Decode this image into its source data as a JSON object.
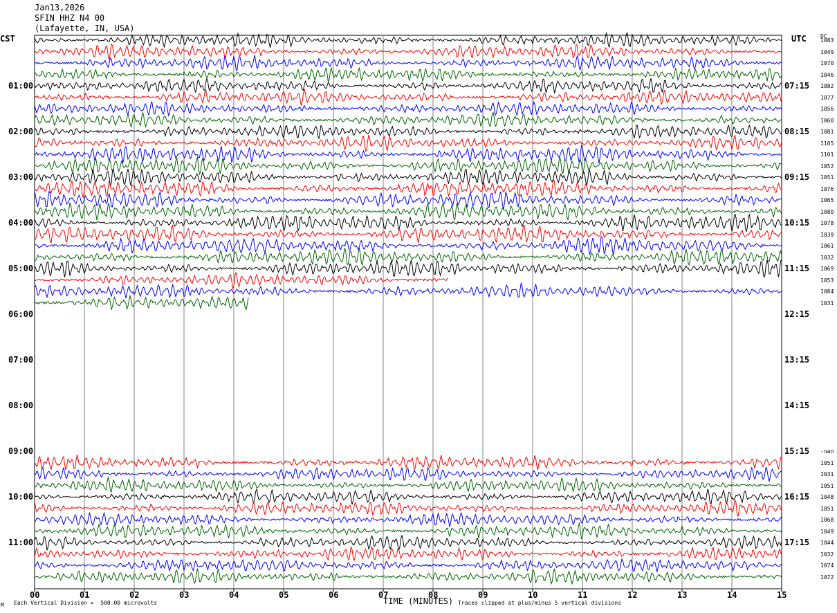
{
  "header": {
    "date": "Jan13,2026",
    "station": "SFIN HHZ N4 00",
    "location": "(Lafayette, IN, USA)"
  },
  "left_timezone": "CST",
  "right_timezone": "UTC",
  "dc_header": "DC",
  "footer": {
    "scale_note": "Each Vertical Division =  500.00 microvolts",
    "xlabel": "TIME (MINUTES)",
    "clip_note": "Traces clipped at plus/minus 5 vertical divisions",
    "corner_mark": "M"
  },
  "colors": {
    "cycle": [
      "#000000",
      "#ff0000",
      "#0000ff",
      "#006400"
    ],
    "grid": "#808080"
  },
  "chart_data": {
    "type": "line",
    "title": "SFIN HHZ N4 00",
    "xlabel": "TIME (MINUTES)",
    "xlim": [
      0,
      15
    ],
    "x_ticks": [
      "00",
      "01",
      "02",
      "03",
      "04",
      "05",
      "06",
      "07",
      "08",
      "09",
      "10",
      "11",
      "12",
      "13",
      "14",
      "15"
    ],
    "cst_hour_labels": [
      "01:00",
      "02:00",
      "03:00",
      "04:00",
      "05:00",
      "06:00",
      "07:00",
      "08:00",
      "09:00",
      "10:00",
      "11:00"
    ],
    "utc_hour_labels": [
      "07:15",
      "08:15",
      "09:15",
      "10:15",
      "11:15",
      "12:15",
      "13:15",
      "14:15",
      "15:15",
      "16:15",
      "17:15"
    ],
    "line_minutes": 15,
    "lines_per_hour": 4,
    "start_hour_cst": 0,
    "segments": [
      {
        "start_index": 0,
        "dc_values": [
          "1083",
          "1049",
          "1070",
          "1046",
          "1082",
          "1077",
          "1056",
          "1060",
          "1081",
          "1105",
          "1101",
          "1052",
          "1051",
          "1076",
          "1065",
          "1080",
          "1078",
          "1039",
          "1061",
          "1032",
          "1069",
          "1053",
          "1084",
          "1031"
        ],
        "last_line_end_minute": 4.3
      },
      {
        "start_index": 36,
        "first_dc_label": "-nan",
        "dc_values": [
          "1051",
          "1031",
          "1051",
          "1048",
          "1051",
          "1068",
          "1049",
          "1044",
          "1032",
          "1074",
          "1072"
        ]
      }
    ],
    "partial_line_ends": {
      "21": 8.3,
      "23": 4.3
    }
  }
}
